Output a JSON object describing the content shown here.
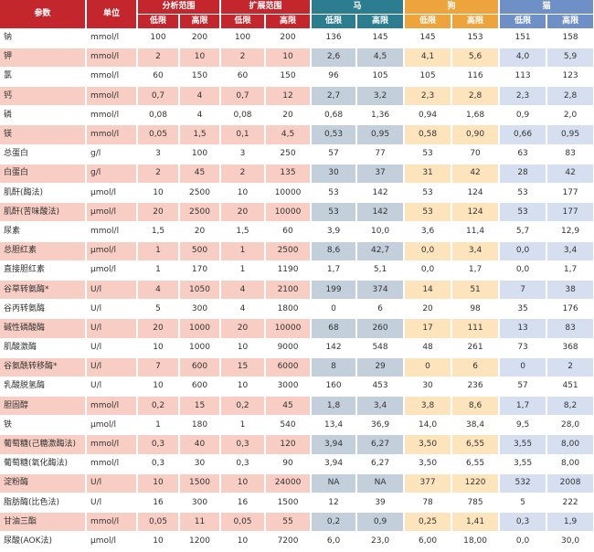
{
  "header": {
    "param": "参数",
    "unit": "单位",
    "analysis_range": "分析范围",
    "extended_range": "扩展范围",
    "horse": "马",
    "dog": "狗",
    "cat": "猫",
    "low": "低限",
    "high": "高限"
  },
  "rows": [
    {
      "name": "钠",
      "unit": "mmol/l",
      "v": [
        "100",
        "200",
        "100",
        "200",
        "136",
        "145",
        "145",
        "153",
        "151",
        "158"
      ]
    },
    {
      "name": "钾",
      "unit": "mmol/l",
      "v": [
        "2",
        "10",
        "2",
        "10",
        "2,6",
        "4,5",
        "4,1",
        "5,6",
        "4,0",
        "5,9"
      ]
    },
    {
      "name": "氯",
      "unit": "mmol/l",
      "v": [
        "60",
        "150",
        "60",
        "150",
        "96",
        "105",
        "105",
        "116",
        "113",
        "123"
      ]
    },
    {
      "name": "钙",
      "unit": "mmol/l",
      "v": [
        "0,7",
        "4",
        "0,7",
        "12",
        "2,7",
        "3,2",
        "2,3",
        "2,8",
        "2,3",
        "2,8"
      ]
    },
    {
      "name": "磷",
      "unit": "mmol/l",
      "v": [
        "0,08",
        "4",
        "0,08",
        "20",
        "0,68",
        "1,36",
        "0,94",
        "1,68",
        "0,9",
        "2,0"
      ]
    },
    {
      "name": "镁",
      "unit": "mmol/l",
      "v": [
        "0,05",
        "1,5",
        "0,1",
        "4,5",
        "0,53",
        "0,95",
        "0,58",
        "0,90",
        "0,66",
        "0,95"
      ]
    },
    {
      "name": "总蛋白",
      "unit": "g/l",
      "v": [
        "3",
        "100",
        "3",
        "250",
        "57",
        "77",
        "53",
        "70",
        "63",
        "83"
      ]
    },
    {
      "name": "白蛋白",
      "unit": "g/l",
      "v": [
        "2",
        "45",
        "2",
        "135",
        "30",
        "37",
        "31",
        "42",
        "28",
        "42"
      ]
    },
    {
      "name": "肌酐(酶法)",
      "unit": "μmol/l",
      "v": [
        "10",
        "2500",
        "10",
        "10000",
        "53",
        "142",
        "53",
        "124",
        "53",
        "177"
      ]
    },
    {
      "name": "肌酐(苦味酸法)",
      "unit": "μmol/l",
      "v": [
        "20",
        "2500",
        "20",
        "10000",
        "53",
        "142",
        "53",
        "124",
        "53",
        "177"
      ]
    },
    {
      "name": "尿素",
      "unit": "mmol/l",
      "v": [
        "1,5",
        "20",
        "1,5",
        "60",
        "3,9",
        "10,0",
        "3,6",
        "11,4",
        "5,7",
        "12,9"
      ]
    },
    {
      "name": "总胆红素",
      "unit": "μmol/l",
      "v": [
        "1",
        "500",
        "1",
        "2500",
        "8,6",
        "42,7",
        "0,0",
        "3,4",
        "0,0",
        "3,4"
      ]
    },
    {
      "name": "直接胆红素",
      "unit": "μmol/l",
      "v": [
        "1",
        "170",
        "1",
        "1190",
        "1,7",
        "5,1",
        "0,0",
        "1,7",
        "0,0",
        "1,7"
      ]
    },
    {
      "name": "谷草转氨酶*",
      "unit": "U/l",
      "v": [
        "4",
        "1050",
        "4",
        "2100",
        "199",
        "374",
        "14",
        "51",
        "7",
        "38"
      ]
    },
    {
      "name": "谷丙转氨酶",
      "unit": "U/l",
      "v": [
        "5",
        "300",
        "4",
        "1800",
        "0",
        "6",
        "20",
        "98",
        "35",
        "176"
      ]
    },
    {
      "name": "碱性磷酸酶",
      "unit": "U/l",
      "v": [
        "20",
        "1000",
        "20",
        "10000",
        "68",
        "260",
        "17",
        "111",
        "13",
        "83"
      ]
    },
    {
      "name": "肌酸激酶",
      "unit": "U/l",
      "v": [
        "10",
        "1000",
        "10",
        "9000",
        "142",
        "548",
        "48",
        "261",
        "73",
        "368"
      ]
    },
    {
      "name": "谷氨酰转移酶*",
      "unit": "U/l",
      "v": [
        "7",
        "600",
        "15",
        "6000",
        "8",
        "29",
        "0",
        "6",
        "0",
        "2"
      ]
    },
    {
      "name": "乳酸脱氢酶",
      "unit": "U/l",
      "v": [
        "10",
        "600",
        "10",
        "3000",
        "160",
        "453",
        "30",
        "236",
        "57",
        "451"
      ]
    },
    {
      "name": "胆固醇",
      "unit": "mmol/l",
      "v": [
        "0,2",
        "15",
        "0,2",
        "45",
        "1,8",
        "3,4",
        "3,8",
        "8,6",
        "1,7",
        "8,2"
      ]
    },
    {
      "name": "铁",
      "unit": "μmol/l",
      "v": [
        "1",
        "180",
        "1",
        "540",
        "13,4",
        "36,9",
        "14,0",
        "38,4",
        "9,5",
        "28,0"
      ]
    },
    {
      "name": "葡萄糖(己糖激酶法)",
      "unit": "mmol/l",
      "v": [
        "0,3",
        "40",
        "0,3",
        "120",
        "3,94",
        "6,27",
        "3,50",
        "6,55",
        "3,55",
        "8,00"
      ]
    },
    {
      "name": "葡萄糖(氧化酶法)",
      "unit": "mmol/l",
      "v": [
        "0,3",
        "30",
        "0,3",
        "90",
        "3,94",
        "6,27",
        "3,50",
        "6,55",
        "3,55",
        "8,00"
      ]
    },
    {
      "name": "淀粉酶",
      "unit": "U/l",
      "v": [
        "10",
        "1500",
        "10",
        "24000",
        "NA",
        "NA",
        "377",
        "1220",
        "532",
        "2008"
      ]
    },
    {
      "name": "脂肪酶(比色法)",
      "unit": "U/l",
      "v": [
        "16",
        "300",
        "16",
        "1500",
        "12",
        "39",
        "78",
        "785",
        "5",
        "222"
      ]
    },
    {
      "name": "甘油三酯",
      "unit": "mmol/l",
      "v": [
        "0,05",
        "11",
        "0,05",
        "55",
        "0,2",
        "0,9",
        "0,25",
        "1,41",
        "0,3",
        "1,9"
      ]
    },
    {
      "name": "尿酸(AOK法)",
      "unit": "μmol/l",
      "v": [
        "10",
        "1200",
        "10",
        "7200",
        "6,0",
        "23,0",
        "6,00",
        "18,00",
        "0,0",
        "30,0"
      ]
    }
  ]
}
